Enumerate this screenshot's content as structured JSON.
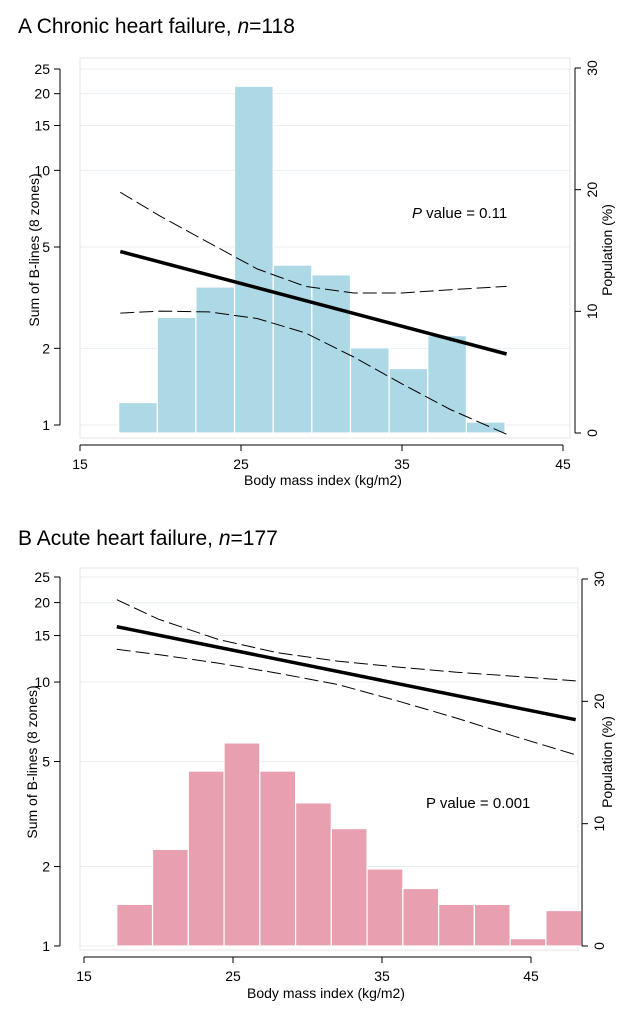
{
  "charts": [
    {
      "panel_letter": "A",
      "title": "Chronic heart failure, ",
      "n_label": "n",
      "n_value": "=118",
      "pvalue_p": "P",
      "pvalue_rest": " value = 0.11",
      "pvalue_p_italic": true,
      "bar_color": "#add8e6",
      "chart_data": {
        "type": "bar",
        "xlabel": "Body mass index (kg/m2)",
        "ylabel": "Sum of B-lines (8 zones)",
        "y2label": "Population (%)",
        "x_ticks": [
          15,
          25,
          35,
          45
        ],
        "xlim": [
          15,
          45
        ],
        "y_ticks": [
          1,
          2,
          5,
          10,
          15,
          20,
          25
        ],
        "ylim": [
          0.9,
          26
        ],
        "y_scale": "log",
        "y2_ticks": [
          0,
          10,
          20,
          30
        ],
        "y2lim": [
          0,
          30
        ],
        "histogram": {
          "bin_width": 2.4,
          "bin_starts": [
            17.4,
            19.8,
            22.2,
            24.6,
            27.0,
            29.4,
            31.8,
            34.2,
            36.6,
            39.0
          ],
          "values_pct": [
            2.5,
            9.5,
            12.0,
            28.5,
            13.8,
            13.0,
            7.0,
            5.3,
            8.0,
            0.9
          ]
        },
        "fit_line": {
          "x": [
            17.5,
            41.5
          ],
          "y": [
            4.8,
            1.9
          ]
        },
        "ci_upper": {
          "x": [
            17.5,
            20,
            23,
            26,
            29,
            32,
            35,
            38,
            41.5
          ],
          "y": [
            8.2,
            6.6,
            5.2,
            4.1,
            3.5,
            3.3,
            3.3,
            3.4,
            3.5
          ]
        },
        "ci_lower": {
          "x": [
            17.5,
            20,
            23,
            26,
            29,
            32,
            35,
            38,
            41.5
          ],
          "y": [
            2.75,
            2.8,
            2.78,
            2.62,
            2.3,
            1.85,
            1.45,
            1.15,
            0.92
          ]
        }
      }
    },
    {
      "panel_letter": "B",
      "title": "Acute heart failure, ",
      "n_label": "n",
      "n_value": "=177",
      "pvalue_p": "P",
      "pvalue_rest": " value = 0.001",
      "pvalue_p_italic": false,
      "bar_color": "#e8a0b0",
      "chart_data": {
        "type": "bar",
        "xlabel": "Body mass index (kg/m2)",
        "ylabel": "Sum of B-lines (8 zones)",
        "y2label": "Population (%)",
        "x_ticks": [
          15,
          25,
          35,
          45
        ],
        "xlim": [
          15,
          48
        ],
        "y_ticks": [
          1,
          2,
          5,
          10,
          15,
          20,
          25
        ],
        "ylim": [
          0.9,
          26
        ],
        "y_scale": "log",
        "y2_ticks": [
          0,
          10,
          20,
          30
        ],
        "y2lim": [
          0,
          30
        ],
        "histogram": {
          "bin_width": 2.4,
          "bin_starts": [
            17.2,
            19.6,
            22.0,
            24.4,
            26.8,
            29.2,
            31.6,
            34.0,
            36.4,
            38.8,
            41.2,
            43.6,
            46.0
          ],
          "values_pct": [
            3.4,
            7.9,
            14.3,
            16.6,
            14.3,
            11.7,
            9.6,
            6.3,
            4.7,
            3.4,
            3.4,
            0.6,
            2.9
          ]
        },
        "fit_line": {
          "x": [
            17.2,
            48
          ],
          "y": [
            16.2,
            7.2
          ]
        },
        "ci_upper": {
          "x": [
            17.2,
            20,
            24,
            28,
            32,
            36,
            40,
            44,
            48
          ],
          "y": [
            20.5,
            17.3,
            14.5,
            12.9,
            12.0,
            11.4,
            10.9,
            10.5,
            10.1
          ]
        },
        "ci_lower": {
          "x": [
            17.2,
            20,
            24,
            28,
            32,
            36,
            40,
            44,
            48
          ],
          "y": [
            13.3,
            12.7,
            11.8,
            10.8,
            9.8,
            8.5,
            7.3,
            6.2,
            5.3
          ]
        }
      }
    }
  ]
}
